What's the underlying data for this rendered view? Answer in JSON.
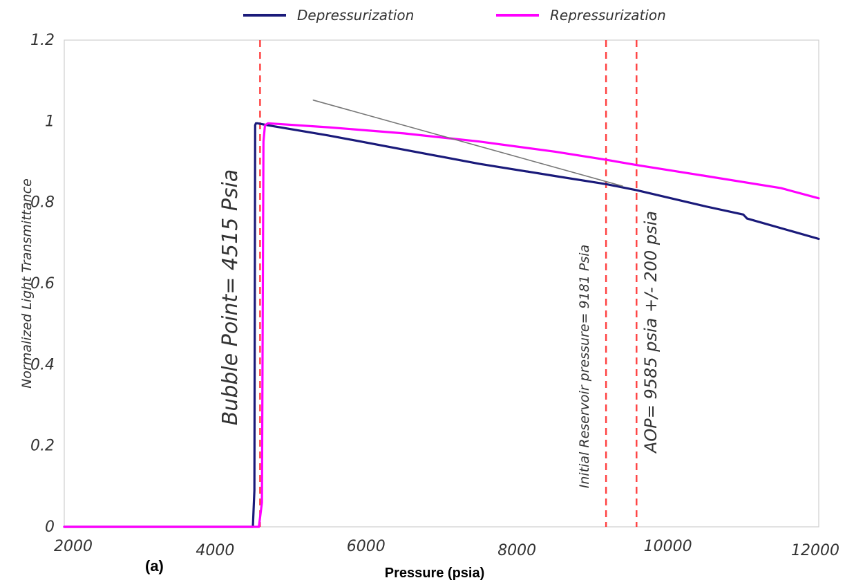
{
  "chart_data": {
    "type": "line",
    "title": "",
    "panel_label": "(a)",
    "xlabel": "Pressure (psia)",
    "ylabel": "Normalized Light Transmittance",
    "xlim": [
      2000,
      12000
    ],
    "ylim": [
      0,
      1.2
    ],
    "x_ticks": [
      "2000",
      "4000",
      "6000",
      "8000",
      "10000",
      "12000"
    ],
    "y_ticks": [
      "0",
      "0.2",
      "0.4",
      "0.6",
      "0.8",
      "1",
      "1.2"
    ],
    "grid": false,
    "legend_position": "top",
    "series": [
      {
        "name": "Depressurization",
        "color": "#1a1a7a",
        "x": [
          2000,
          4000,
          4500,
          4520,
          4530,
          4540,
          4560,
          4700,
          5500,
          6500,
          7500,
          8500,
          9181,
          9585,
          10500,
          11000,
          11050,
          12000
        ],
        "y": [
          0,
          0,
          0,
          0.09,
          0.99,
          0.995,
          0.995,
          0.99,
          0.965,
          0.93,
          0.895,
          0.865,
          0.845,
          0.83,
          0.79,
          0.77,
          0.76,
          0.71
        ]
      },
      {
        "name": "Repressurization",
        "color": "#ff00ff",
        "x": [
          2000,
          4000,
          4580,
          4620,
          4640,
          4660,
          4700,
          5500,
          6500,
          7500,
          8500,
          9181,
          9585,
          10500,
          11500,
          12000
        ],
        "y": [
          0,
          0,
          0,
          0.06,
          0.95,
          0.99,
          0.995,
          0.985,
          0.97,
          0.95,
          0.925,
          0.905,
          0.892,
          0.865,
          0.835,
          0.81
        ]
      },
      {
        "name": "",
        "color": "#777777",
        "x": [
          5300,
          9400
        ],
        "y": [
          1.052,
          0.84
        ]
      }
    ],
    "vertical_lines": [
      {
        "x": 4515,
        "color": "#ff4444",
        "label": "Bubble Point= 4515 Psia"
      },
      {
        "x": 9181,
        "color": "#ff4444",
        "label": "Initial Reservoir pressure= 9181 Psia"
      },
      {
        "x": 9585,
        "color": "#ff4444",
        "label": "AOP= 9585 psia +/- 200 psia"
      }
    ]
  }
}
